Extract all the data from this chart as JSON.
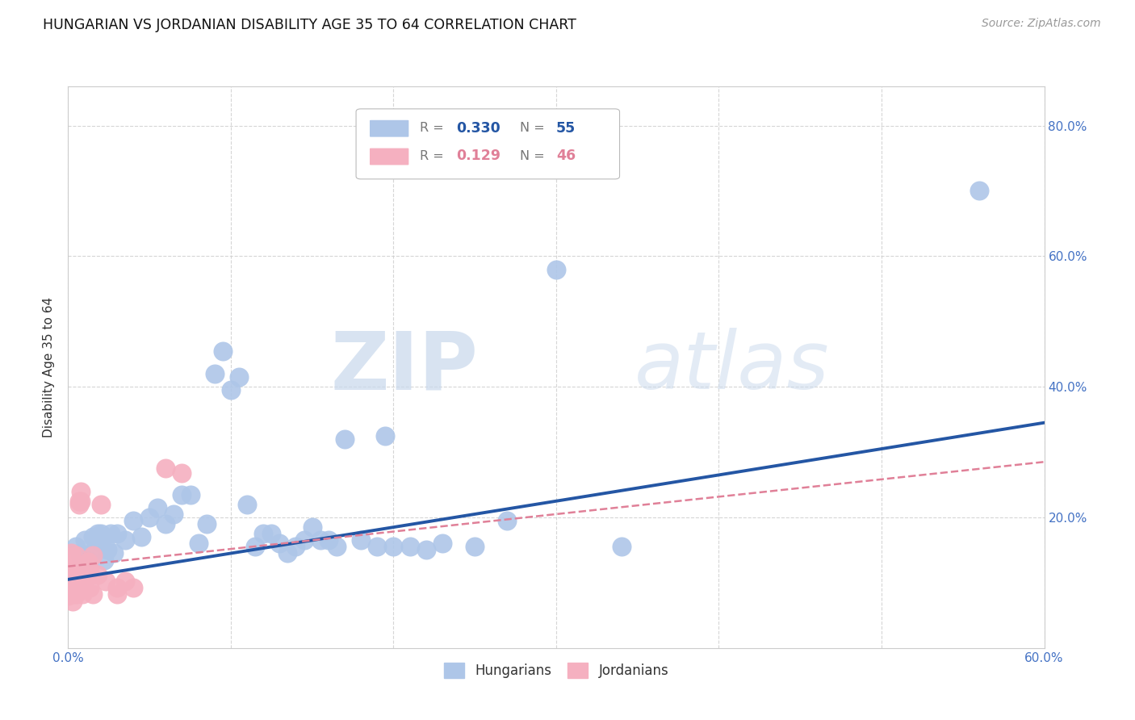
{
  "title": "HUNGARIAN VS JORDANIAN DISABILITY AGE 35 TO 64 CORRELATION CHART",
  "source": "Source: ZipAtlas.com",
  "ylabel": "Disability Age 35 to 64",
  "xlim": [
    0.0,
    0.6
  ],
  "ylim": [
    0.0,
    0.86
  ],
  "xticks": [
    0.0,
    0.1,
    0.2,
    0.3,
    0.4,
    0.5,
    0.6
  ],
  "yticks": [
    0.2,
    0.4,
    0.6,
    0.8
  ],
  "xticklabels": [
    "0.0%",
    "",
    "",
    "",
    "",
    "",
    "60.0%"
  ],
  "yticklabels_right": [
    "20.0%",
    "40.0%",
    "60.0%",
    "80.0%"
  ],
  "watermark_zip": "ZIP",
  "watermark_atlas": "atlas",
  "hungarian_color": "#aec6e8",
  "jordanian_color": "#f5b0c0",
  "hungarian_line_color": "#2456a4",
  "jordanian_line_color": "#e08098",
  "background_color": "#ffffff",
  "grid_color": "#cccccc",
  "r_hun": "0.330",
  "n_hun": "55",
  "r_jor": "0.129",
  "n_jor": "46",
  "legend_label_hun": "Hungarians",
  "legend_label_jor": "Jordanians",
  "hun_trend_x": [
    0.0,
    0.6
  ],
  "hun_trend_y": [
    0.105,
    0.345
  ],
  "jor_trend_x": [
    0.0,
    0.6
  ],
  "jor_trend_y": [
    0.125,
    0.285
  ],
  "hungarian_points": [
    [
      0.005,
      0.155
    ],
    [
      0.008,
      0.14
    ],
    [
      0.01,
      0.165
    ],
    [
      0.01,
      0.135
    ],
    [
      0.012,
      0.135
    ],
    [
      0.015,
      0.17
    ],
    [
      0.016,
      0.15
    ],
    [
      0.018,
      0.175
    ],
    [
      0.02,
      0.16
    ],
    [
      0.02,
      0.175
    ],
    [
      0.022,
      0.135
    ],
    [
      0.024,
      0.15
    ],
    [
      0.026,
      0.175
    ],
    [
      0.028,
      0.145
    ],
    [
      0.03,
      0.175
    ],
    [
      0.035,
      0.165
    ],
    [
      0.04,
      0.195
    ],
    [
      0.045,
      0.17
    ],
    [
      0.05,
      0.2
    ],
    [
      0.055,
      0.215
    ],
    [
      0.06,
      0.19
    ],
    [
      0.065,
      0.205
    ],
    [
      0.07,
      0.235
    ],
    [
      0.075,
      0.235
    ],
    [
      0.08,
      0.16
    ],
    [
      0.085,
      0.19
    ],
    [
      0.09,
      0.42
    ],
    [
      0.095,
      0.455
    ],
    [
      0.1,
      0.395
    ],
    [
      0.105,
      0.415
    ],
    [
      0.11,
      0.22
    ],
    [
      0.115,
      0.155
    ],
    [
      0.12,
      0.175
    ],
    [
      0.125,
      0.175
    ],
    [
      0.13,
      0.16
    ],
    [
      0.135,
      0.145
    ],
    [
      0.14,
      0.155
    ],
    [
      0.145,
      0.165
    ],
    [
      0.15,
      0.185
    ],
    [
      0.155,
      0.165
    ],
    [
      0.16,
      0.165
    ],
    [
      0.165,
      0.155
    ],
    [
      0.17,
      0.32
    ],
    [
      0.18,
      0.165
    ],
    [
      0.19,
      0.155
    ],
    [
      0.195,
      0.325
    ],
    [
      0.2,
      0.155
    ],
    [
      0.21,
      0.155
    ],
    [
      0.22,
      0.15
    ],
    [
      0.23,
      0.16
    ],
    [
      0.25,
      0.155
    ],
    [
      0.27,
      0.195
    ],
    [
      0.3,
      0.58
    ],
    [
      0.34,
      0.155
    ],
    [
      0.56,
      0.7
    ]
  ],
  "jordanian_points": [
    [
      0.0,
      0.13
    ],
    [
      0.0,
      0.115
    ],
    [
      0.0,
      0.1
    ],
    [
      0.0,
      0.09
    ],
    [
      0.0,
      0.08
    ],
    [
      0.0,
      0.12
    ],
    [
      0.0,
      0.14
    ],
    [
      0.002,
      0.145
    ],
    [
      0.003,
      0.105
    ],
    [
      0.003,
      0.09
    ],
    [
      0.003,
      0.082
    ],
    [
      0.003,
      0.112
    ],
    [
      0.003,
      0.122
    ],
    [
      0.003,
      0.132
    ],
    [
      0.003,
      0.072
    ],
    [
      0.005,
      0.102
    ],
    [
      0.005,
      0.092
    ],
    [
      0.005,
      0.112
    ],
    [
      0.005,
      0.082
    ],
    [
      0.005,
      0.142
    ],
    [
      0.007,
      0.22
    ],
    [
      0.007,
      0.225
    ],
    [
      0.008,
      0.24
    ],
    [
      0.008,
      0.225
    ],
    [
      0.009,
      0.102
    ],
    [
      0.009,
      0.092
    ],
    [
      0.009,
      0.082
    ],
    [
      0.01,
      0.122
    ],
    [
      0.01,
      0.112
    ],
    [
      0.01,
      0.102
    ],
    [
      0.01,
      0.092
    ],
    [
      0.012,
      0.132
    ],
    [
      0.013,
      0.112
    ],
    [
      0.013,
      0.12
    ],
    [
      0.013,
      0.092
    ],
    [
      0.015,
      0.142
    ],
    [
      0.015,
      0.082
    ],
    [
      0.018,
      0.112
    ],
    [
      0.02,
      0.22
    ],
    [
      0.023,
      0.102
    ],
    [
      0.03,
      0.092
    ],
    [
      0.03,
      0.082
    ],
    [
      0.035,
      0.102
    ],
    [
      0.04,
      0.092
    ],
    [
      0.06,
      0.275
    ],
    [
      0.07,
      0.268
    ]
  ]
}
